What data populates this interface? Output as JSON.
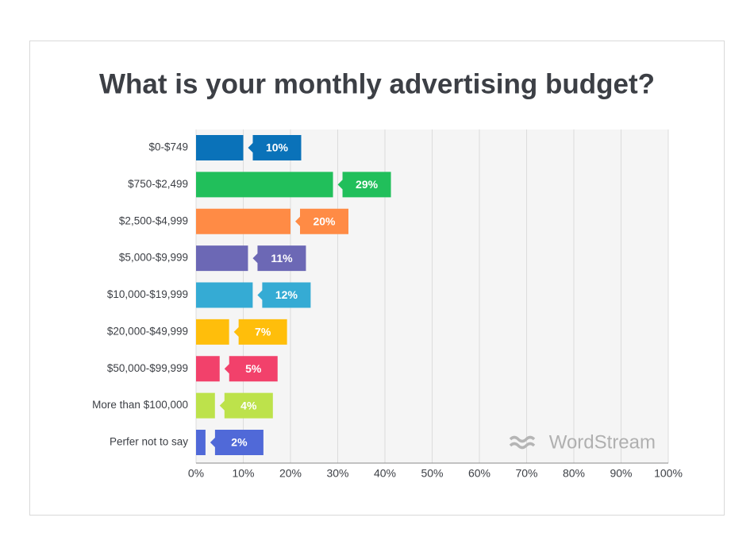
{
  "chart_data": {
    "type": "bar",
    "orientation": "horizontal",
    "title": "What is your monthly advertising budget?",
    "categories": [
      "$0-$749",
      "$750-$2,499",
      "$2,500-$4,999",
      "$5,000-$9,999",
      "$10,000-$19,999",
      "$20,000-$49,999",
      "$50,000-$99,999",
      "More than $100,000",
      "Perfer not to say"
    ],
    "values": [
      10,
      29,
      20,
      11,
      12,
      7,
      5,
      4,
      2
    ],
    "value_labels": [
      "10%",
      "29%",
      "20%",
      "11%",
      "12%",
      "7%",
      "5%",
      "4%",
      "2%"
    ],
    "colors": [
      "#0a72b9",
      "#21bf5b",
      "#ff8b45",
      "#6c68b5",
      "#35abd4",
      "#ffbe0b",
      "#f2416b",
      "#bde24b",
      "#5069d8"
    ],
    "xlim": [
      0,
      100
    ],
    "xticks": [
      {
        "value": 0,
        "label": "0%"
      },
      {
        "value": 10,
        "label": "10%"
      },
      {
        "value": 20,
        "label": "20%"
      },
      {
        "value": 30,
        "label": "30%"
      },
      {
        "value": 40,
        "label": "40%"
      },
      {
        "value": 50,
        "label": "50%"
      },
      {
        "value": 60,
        "label": "60%"
      },
      {
        "value": 70,
        "label": "70%"
      },
      {
        "value": 80,
        "label": "80%"
      },
      {
        "value": 90,
        "label": "90%"
      },
      {
        "value": 100,
        "label": "100%"
      }
    ],
    "grid": true,
    "watermark": "WordStream"
  }
}
